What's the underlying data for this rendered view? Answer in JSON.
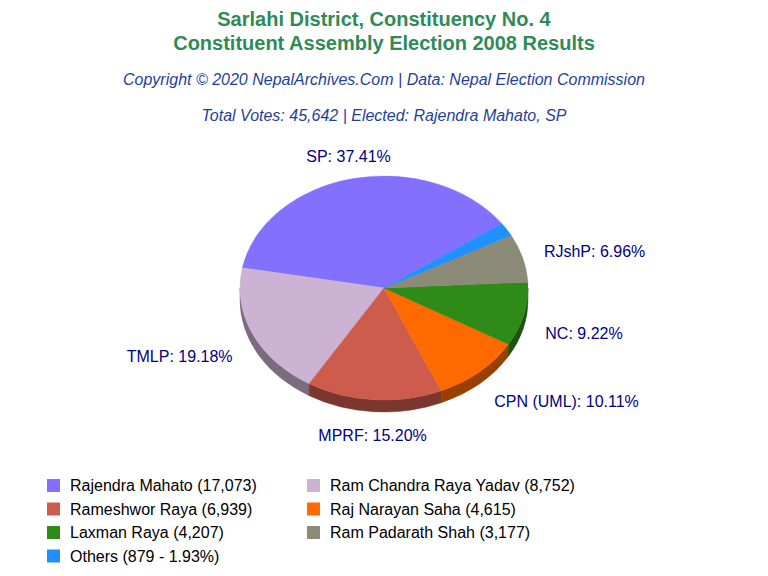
{
  "chart_data": {
    "type": "pie",
    "title": "Sarlahi District, Constituency No. 4\nConstituent Assembly Election 2008 Results",
    "subtitle": "Copyright © 2020 NepalArchives.Com | Data: Nepal Election Commission",
    "annotations": [
      "Total Votes: 45,642 | Elected: Rajendra Mahato, SP"
    ],
    "categories": [
      "Rajendra Mahato (17,073)",
      "Ram Chandra Raya Yadav (8,752)",
      "Rameshwor Raya (6,939)",
      "Raj Narayan Saha (4,615)",
      "Laxman Raya (4,207)",
      "Ram Padarath Shah (3,177)",
      "Others (879 - 1.93%)"
    ],
    "values": [
      37.41,
      19.18,
      15.2,
      10.11,
      9.22,
      6.96,
      1.93
    ],
    "value_labels": [
      "SP: 37.41%",
      "TMLP: 19.18%",
      "MPRF: 15.20%",
      "CPN (UML): 10.11%",
      "NC: 9.22%",
      "RJshP: 6.96%",
      null
    ],
    "colors": [
      "#8470ff",
      "#cdb3d3",
      "#cd5c4c",
      "#ff6a00",
      "#2e8b17",
      "#8b8b78",
      "#1e90ff"
    ],
    "legend": "bottom",
    "data_labels": true
  }
}
